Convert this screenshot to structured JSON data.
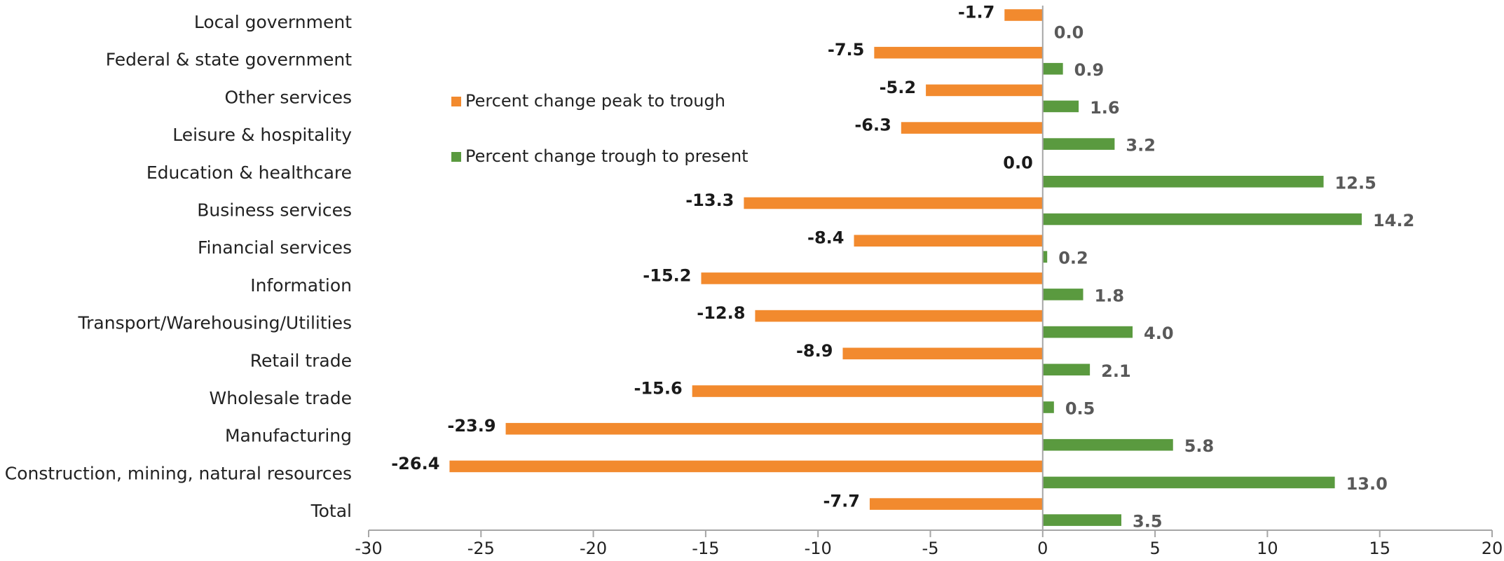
{
  "chart_data": {
    "type": "bar",
    "orientation": "horizontal",
    "categories": [
      "Local government",
      "Federal & state government",
      "Other services",
      "Leisure & hospitality",
      "Education & healthcare",
      "Business services",
      "Financial services",
      "Information",
      "Transport/Warehousing/Utilities",
      "Retail trade",
      "Wholesale trade",
      "Manufacturing",
      "Construction, mining, natural resources",
      "Total"
    ],
    "series": [
      {
        "name": "Percent change peak to trough",
        "color": "#f28a2e",
        "label_color": "#1a1a1a",
        "values": [
          -1.7,
          -7.5,
          -5.2,
          -6.3,
          0.0,
          -13.3,
          -8.4,
          -15.2,
          -12.8,
          -8.9,
          -15.6,
          -23.9,
          -26.4,
          -7.7
        ],
        "value_labels": [
          "-1.7",
          "-7.5",
          "-5.2",
          "-6.3",
          "0.0",
          "-13.3",
          "-8.4",
          "-15.2",
          "-12.8",
          "-8.9",
          "-15.6",
          "-23.9",
          "-26.4",
          "-7.7"
        ]
      },
      {
        "name": "Percent change trough to present",
        "color": "#5a9a3f",
        "label_color": "#595959",
        "values": [
          0.0,
          0.9,
          1.6,
          3.2,
          12.5,
          14.2,
          0.2,
          1.8,
          4.0,
          2.1,
          0.5,
          5.8,
          13.0,
          3.5
        ],
        "value_labels": [
          "0.0",
          "0.9",
          "1.6",
          "3.2",
          "12.5",
          "14.2",
          "0.2",
          "1.8",
          "4.0",
          "2.1",
          "0.5",
          "5.8",
          "13.0",
          "3.5"
        ]
      }
    ],
    "xlim": [
      -30,
      20
    ],
    "xticks": [
      -30,
      -25,
      -20,
      -15,
      -10,
      -5,
      0,
      5,
      10,
      15,
      20
    ]
  }
}
